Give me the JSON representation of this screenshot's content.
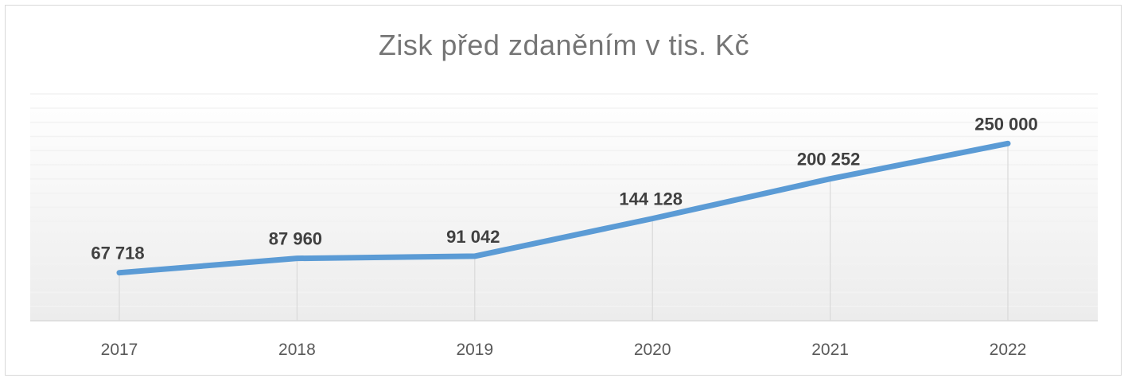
{
  "chart_data": {
    "type": "line",
    "title": "Zisk před zdaněním v tis. Kč",
    "xlabel": "",
    "ylabel": "",
    "categories": [
      "2017",
      "2018",
      "2019",
      "2020",
      "2021",
      "2022"
    ],
    "series": [
      {
        "values": [
          67718,
          87960,
          91042,
          144128,
          200252,
          250000
        ],
        "labels": [
          "67 718",
          "87 960",
          "91 042",
          "144 128",
          "200 252",
          "250 000"
        ],
        "color": "#5b9bd5"
      }
    ],
    "ylim": [
      0,
      320000
    ],
    "grid": true,
    "legend": "none",
    "data_labels": true
  }
}
